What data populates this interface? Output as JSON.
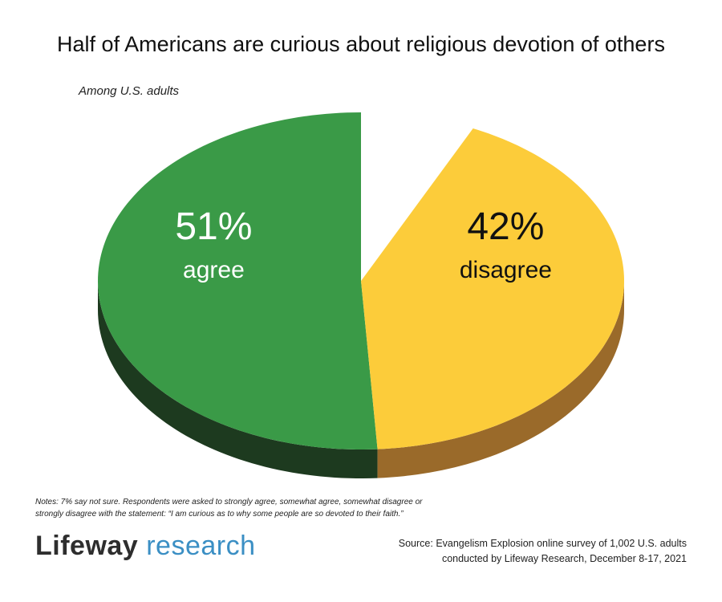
{
  "chart_data": {
    "type": "pie",
    "title": "Half of Americans are curious about religious devotion of others",
    "subtitle": "Among U.S. adults",
    "slices": [
      {
        "value": 51,
        "label_pct": "51%",
        "label_word": "agree",
        "color": "#3a9a47",
        "side_color": "#1d3a1f",
        "text_color": "#ffffff"
      },
      {
        "value": 42,
        "label_pct": "42%",
        "label_word": "disagree",
        "color": "#fccc3a",
        "side_color": "#9a6a2a",
        "text_color": "#111111"
      },
      {
        "value": 7,
        "label_pct": "",
        "label_word": "",
        "color": "#ffffff",
        "side_color": "#ffffff",
        "text_color": "#111111"
      }
    ]
  },
  "notes": {
    "line1": "Notes: 7% say not sure. Respondents were asked to strongly agree, somewhat agree, somewhat disagree or",
    "line2": "strongly disagree with the statement: “I am curious as to why some people are so devoted to their faith.”"
  },
  "logo": {
    "word1": "Lifeway",
    "word2": "research"
  },
  "source": {
    "line1": "Source: Evangelism Explosion online survey of 1,002 U.S. adults",
    "line2": "conducted by Lifeway Research, December 8-17, 2021"
  }
}
